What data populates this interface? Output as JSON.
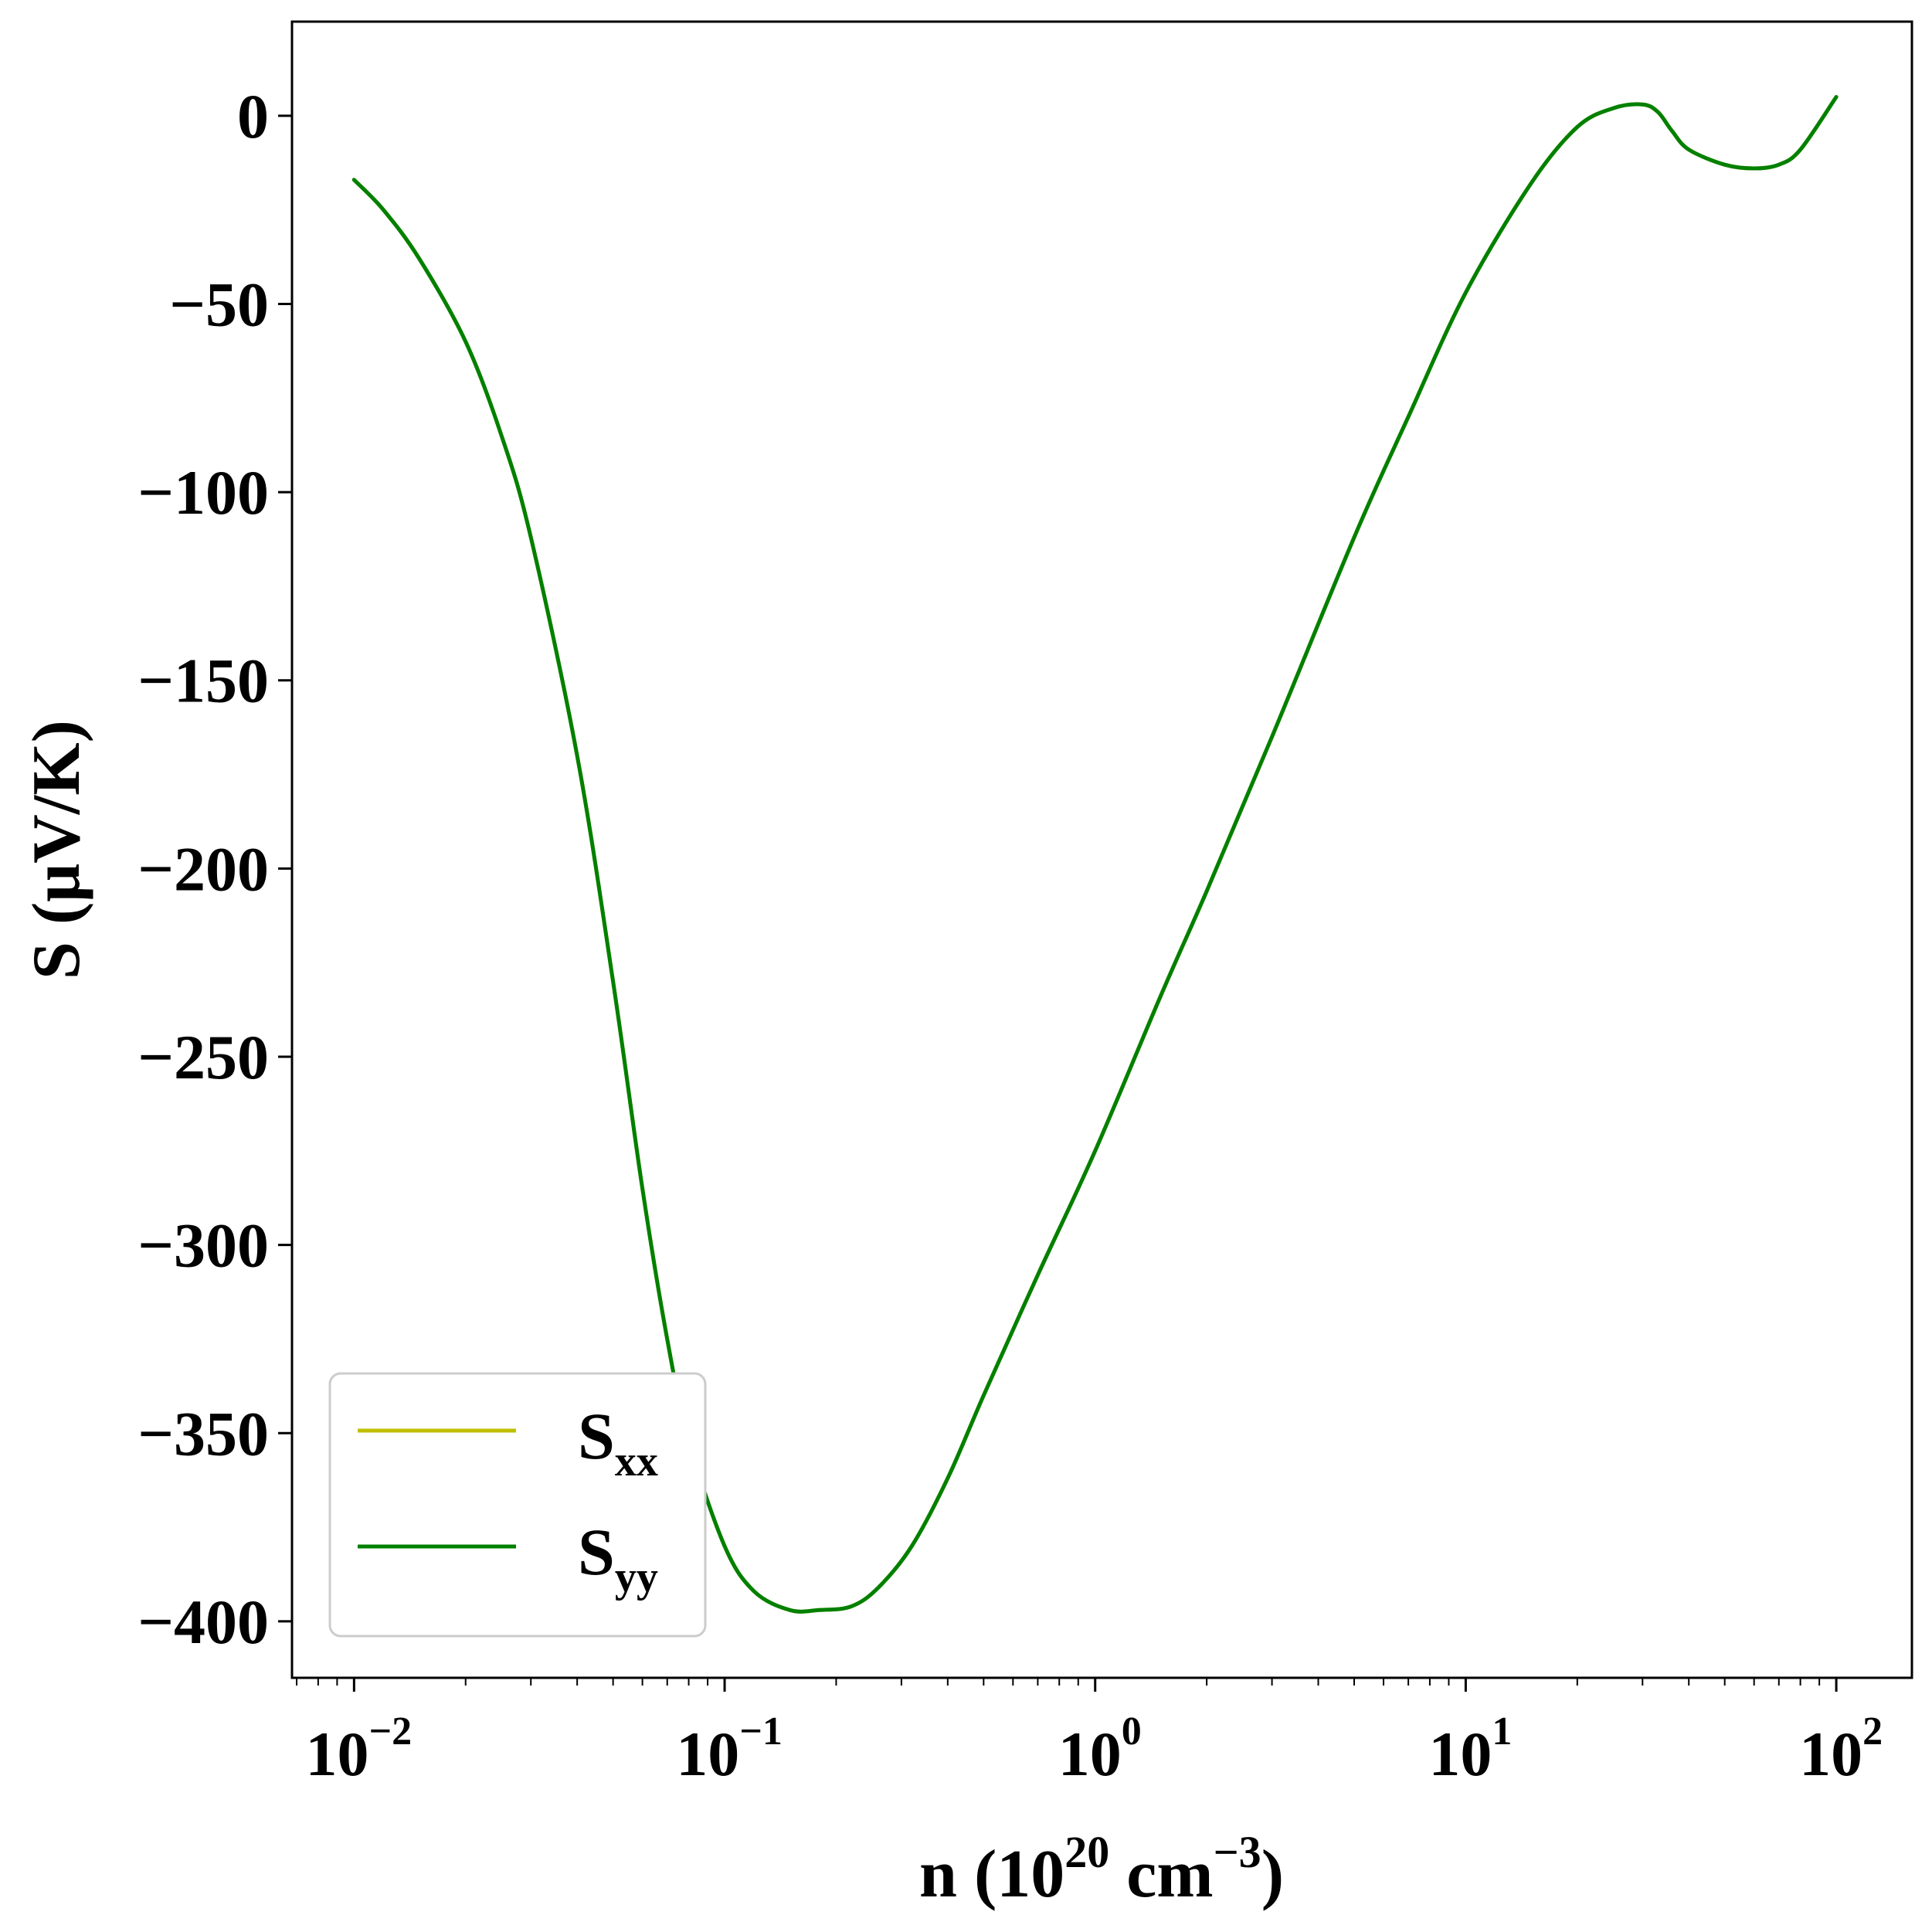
{
  "chart_data": {
    "type": "line",
    "title": "",
    "xlabel": {
      "text_prefix": "n (10",
      "sup1": "20",
      "middle": " cm",
      "sup2": "−3",
      "suffix": ")"
    },
    "ylabel": "S (μV/K)",
    "xscale": "log",
    "xlim": [
      0.0068,
      160
    ],
    "ylim": [
      -415,
      25
    ],
    "x_ticks": [
      {
        "value": 0.01,
        "base": "10",
        "exp": "−2"
      },
      {
        "value": 0.1,
        "base": "10",
        "exp": "−1"
      },
      {
        "value": 1,
        "base": "10",
        "exp": "0"
      },
      {
        "value": 10,
        "base": "10",
        "exp": "1"
      },
      {
        "value": 100,
        "base": "10",
        "exp": "2"
      }
    ],
    "y_ticks": [
      {
        "value": 0,
        "label": "0"
      },
      {
        "value": -50,
        "label": "−50"
      },
      {
        "value": -100,
        "label": "−100"
      },
      {
        "value": -150,
        "label": "−150"
      },
      {
        "value": -200,
        "label": "−200"
      },
      {
        "value": -250,
        "label": "−250"
      },
      {
        "value": -300,
        "label": "−300"
      },
      {
        "value": -350,
        "label": "−350"
      },
      {
        "value": -400,
        "label": "−400"
      }
    ],
    "grid": false,
    "legend_position": "lower-left",
    "series": [
      {
        "name": "S",
        "subscript": "xx",
        "color": "#bfbf00",
        "x": [
          0.01,
          0.012,
          0.015,
          0.02,
          0.025,
          0.03,
          0.04,
          0.05,
          0.06,
          0.07,
          0.08,
          0.1,
          0.12,
          0.15,
          0.18,
          0.22,
          0.26,
          0.32,
          0.4,
          0.5,
          0.7,
          1,
          1.5,
          2,
          3,
          5,
          7,
          10,
          15,
          20,
          25,
          30,
          33,
          36,
          40,
          50,
          60,
          70,
          80,
          100
        ],
        "y": [
          -17,
          -25,
          -38,
          -60,
          -85,
          -112,
          -170,
          -230,
          -285,
          -325,
          -352,
          -380,
          -392,
          -397,
          -397,
          -396,
          -391,
          -380,
          -362,
          -340,
          -308,
          -275,
          -234,
          -206,
          -165,
          -112,
          -80,
          -47,
          -18,
          -3,
          2,
          3,
          1,
          -4,
          -9,
          -13,
          -14,
          -13,
          -9,
          5
        ]
      },
      {
        "name": "S",
        "subscript": "yy",
        "color": "#008000",
        "x": [
          0.01,
          0.012,
          0.015,
          0.02,
          0.025,
          0.03,
          0.04,
          0.05,
          0.06,
          0.07,
          0.08,
          0.1,
          0.12,
          0.15,
          0.18,
          0.22,
          0.26,
          0.32,
          0.4,
          0.5,
          0.7,
          1,
          1.5,
          2,
          3,
          5,
          7,
          10,
          15,
          20,
          25,
          30,
          33,
          36,
          40,
          50,
          60,
          70,
          80,
          100
        ],
        "y": [
          -17,
          -25,
          -38,
          -60,
          -85,
          -112,
          -170,
          -230,
          -285,
          -325,
          -352,
          -380,
          -392,
          -397,
          -397,
          -396,
          -391,
          -380,
          -362,
          -340,
          -308,
          -275,
          -234,
          -206,
          -165,
          -112,
          -80,
          -47,
          -18,
          -3,
          2,
          3,
          1,
          -4,
          -9,
          -13,
          -14,
          -13,
          -9,
          5
        ]
      }
    ]
  }
}
